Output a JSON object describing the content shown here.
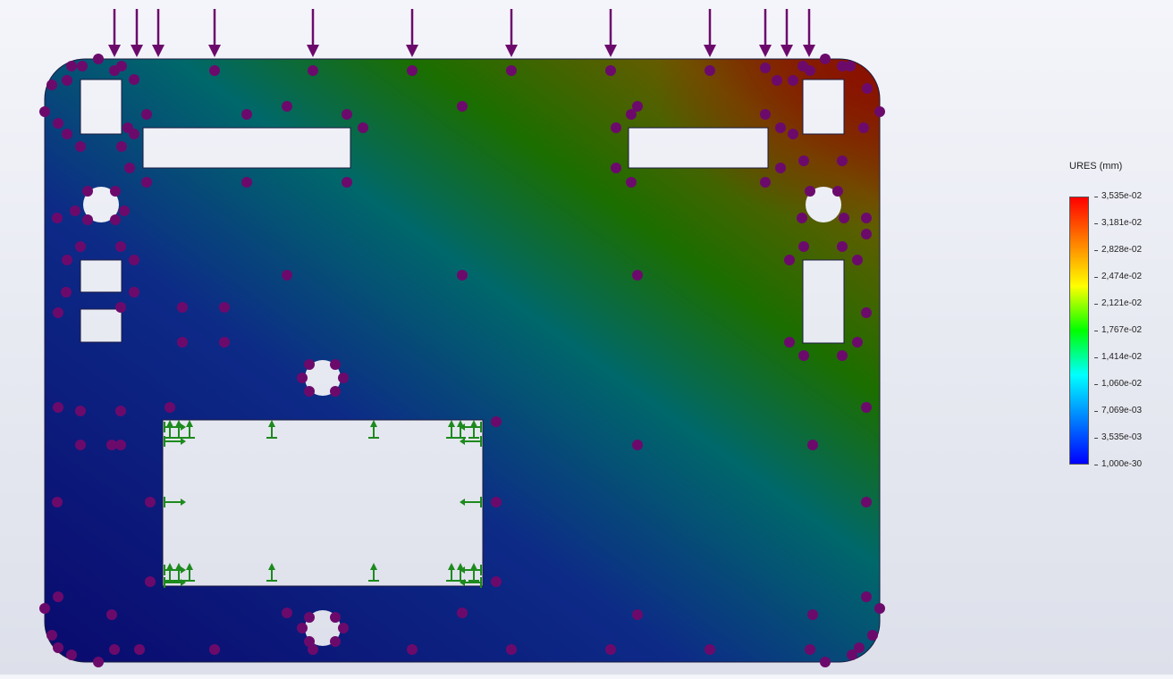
{
  "legend": {
    "title": "URES (mm)",
    "labels": [
      "3,535e-02",
      "3,181e-02",
      "2,828e-02",
      "2,474e-02",
      "2,121e-02",
      "1,767e-02",
      "1,414e-02",
      "1,060e-02",
      "7,069e-03",
      "3,535e-03",
      "1,000e-30"
    ],
    "colors": [
      "#ff0000",
      "#ff7f00",
      "#ffff00",
      "#00ff00",
      "#00ffff",
      "#007fff",
      "#0000ff"
    ]
  },
  "plot": {
    "field_colors": [
      "#0a0a6e",
      "#0d2a87",
      "#00686a",
      "#1b6e00",
      "#6b5a00",
      "#8a1800"
    ],
    "marker_color": "#6c0a6c",
    "arrow_color": "#6c0a6c",
    "fixture_color": "#1d8a1d",
    "load_arrow_count": "12",
    "icons": [
      "load-arrow-icon",
      "mesh-node-icon",
      "fixture-icon"
    ]
  }
}
